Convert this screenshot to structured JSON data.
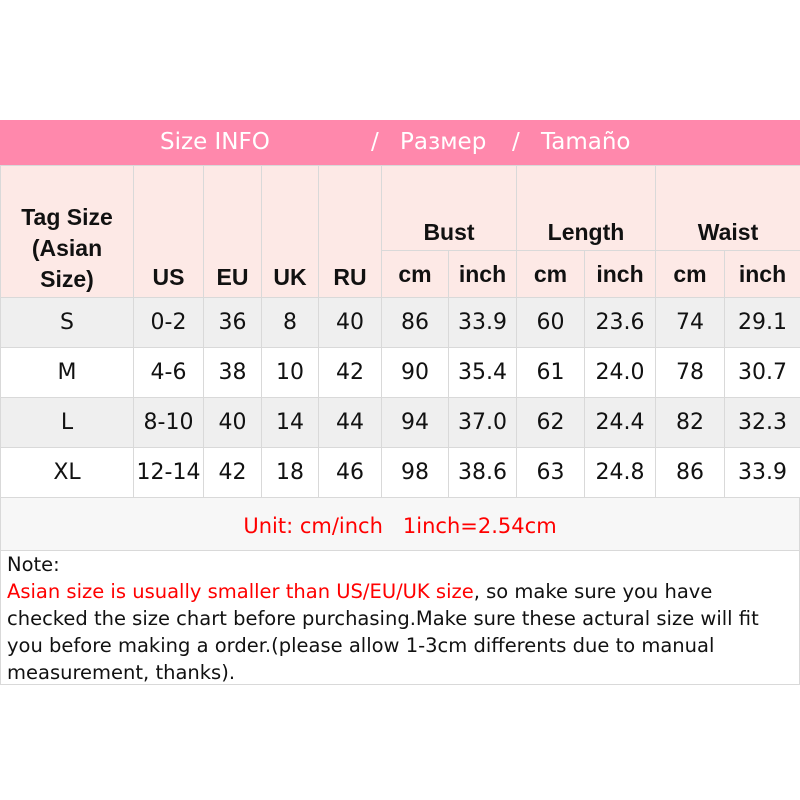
{
  "banner": {
    "left": "Size INFO",
    "sep1": "/",
    "ru": "Размер",
    "sep2": "/",
    "es": "Tamaño"
  },
  "colors": {
    "banner": "#ff88ac",
    "header_bg": "#fde9e6",
    "row_alt": "#efefef",
    "warning": "#ff0000"
  },
  "table": {
    "tag_header": [
      "Tag Size",
      "(Asian",
      "Size)"
    ],
    "std_headers": [
      "US",
      "EU",
      "UK",
      "RU"
    ],
    "groups": [
      "Bust",
      "Length",
      "Waist"
    ],
    "units": [
      "cm",
      "inch",
      "cm",
      "inch",
      "cm",
      "inch"
    ],
    "rows": [
      [
        "S",
        "0-2",
        "36",
        "8",
        "40",
        "86",
        "33.9",
        "60",
        "23.6",
        "74",
        "29.1"
      ],
      [
        "M",
        "4-6",
        "38",
        "10",
        "42",
        "90",
        "35.4",
        "61",
        "24.0",
        "78",
        "30.7"
      ],
      [
        "L",
        "8-10",
        "40",
        "14",
        "44",
        "94",
        "37.0",
        "62",
        "24.4",
        "82",
        "32.3"
      ],
      [
        "XL",
        "12-14",
        "42",
        "18",
        "46",
        "98",
        "38.6",
        "63",
        "24.8",
        "86",
        "33.9"
      ]
    ]
  },
  "unit_line": "Unit: cm/inch   1inch=2.54cm",
  "note": {
    "title": "Note:",
    "warning": "Asian size is usually smaller than US/EU/UK size",
    "body": ", so make sure you have checked the size chart before purchasing.Make sure these actural size will fit you before making a order.(please allow 1-3cm differents due to manual measurement, thanks)."
  }
}
